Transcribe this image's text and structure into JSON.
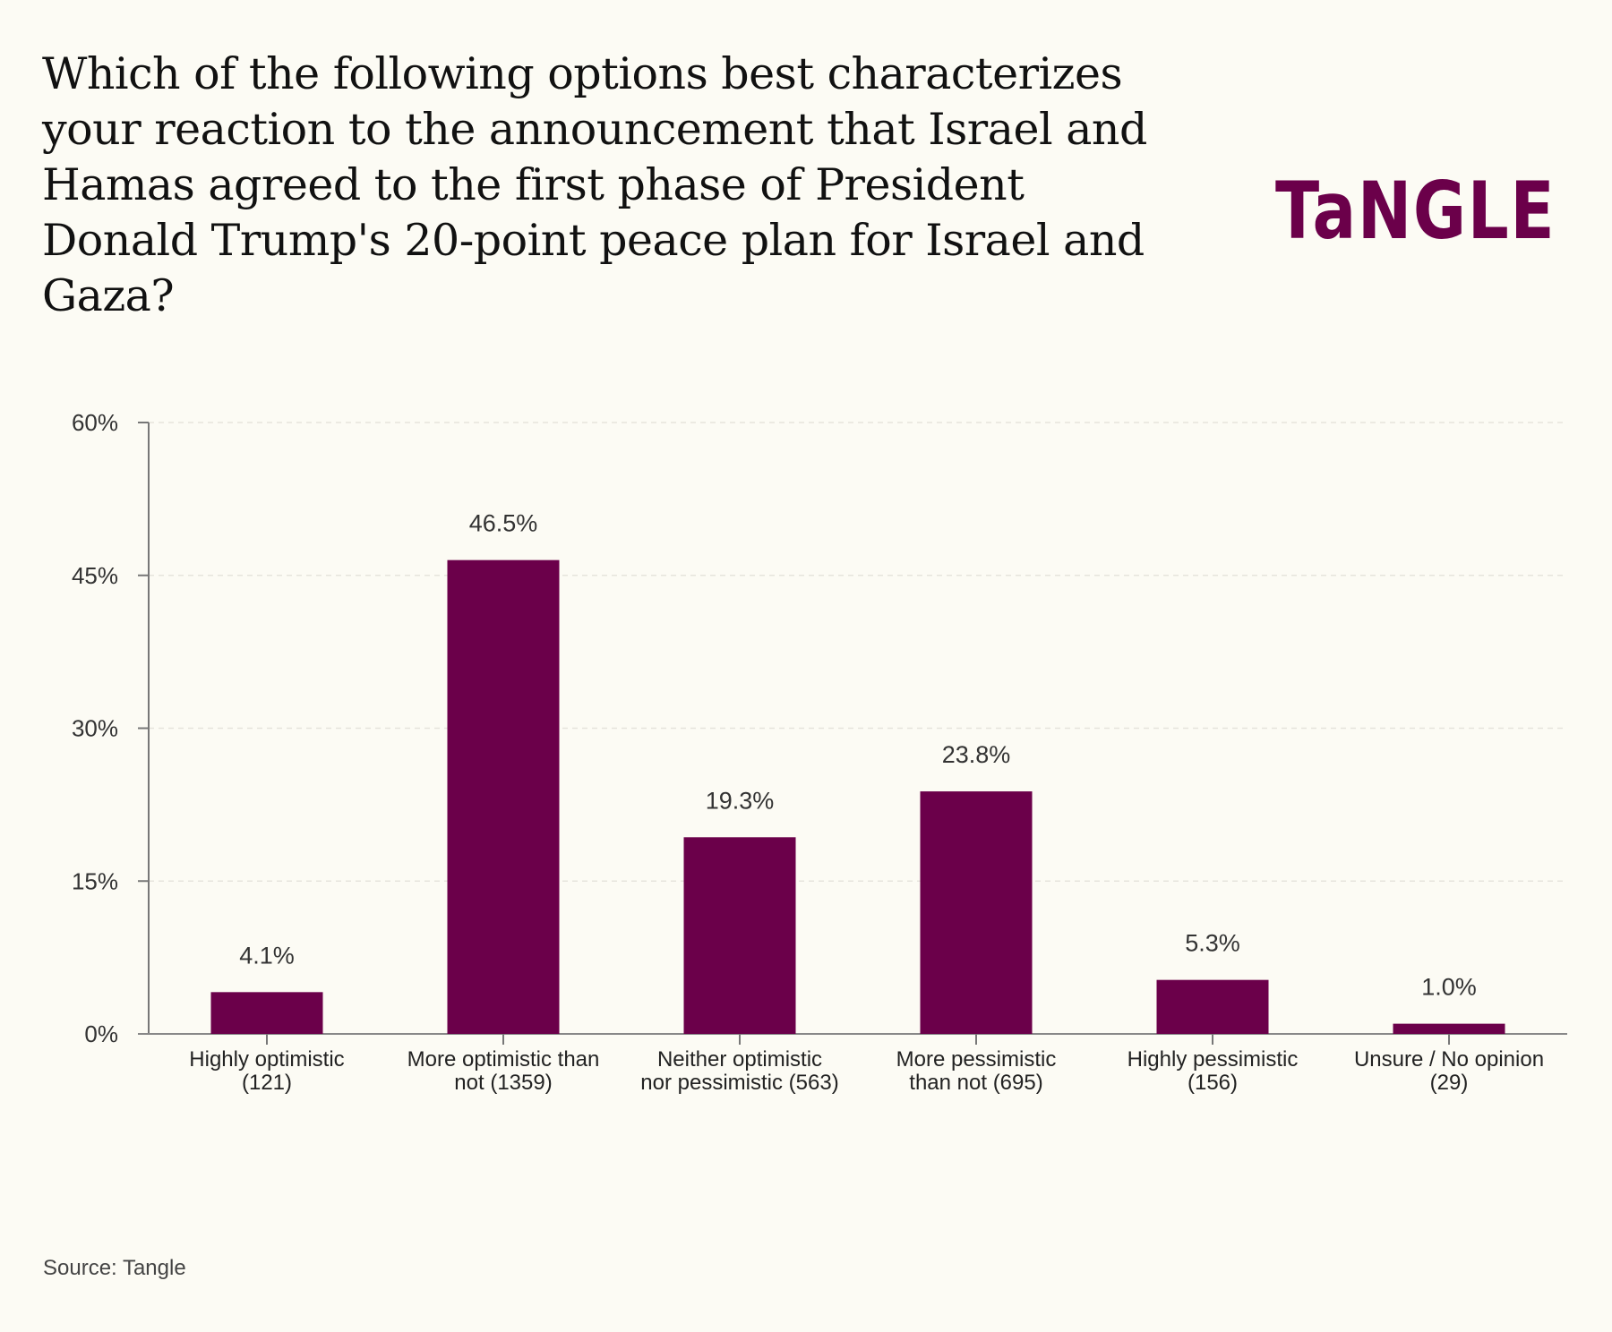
{
  "title": "Which of the following options best characterizes your reaction to the announcement that Israel and Hamas agreed to the first phase of President Donald Trump's 20-point peace plan for Israel and Gaza?",
  "logo": "TaNGLE",
  "logo_icon": "tangle-logo",
  "source": "Source: Tangle",
  "colors": {
    "bar": "#6b004a",
    "background": "#fcfbf4",
    "logo": "#6b004a"
  },
  "chart_data": {
    "type": "bar",
    "title": "Which of the following options best characterizes your reaction to the announcement that Israel and Hamas agreed to the first phase of President Donald Trump's 20-point peace plan for Israel and Gaza?",
    "xlabel": "",
    "ylabel": "",
    "ylim": [
      0,
      60
    ],
    "yticks": [
      0,
      15,
      30,
      45,
      60
    ],
    "ytick_labels": [
      "0%",
      "15%",
      "30%",
      "45%",
      "60%"
    ],
    "grid": true,
    "categories": [
      [
        "Highly optimistic",
        "(121)"
      ],
      [
        "More optimistic than",
        "not (1359)"
      ],
      [
        "Neither optimistic",
        "nor pessimistic (563)"
      ],
      [
        "More pessimistic",
        "than not (695)"
      ],
      [
        "Highly pessimistic",
        "(156)"
      ],
      [
        "Unsure / No opinion",
        "(29)"
      ]
    ],
    "counts": [
      121,
      1359,
      563,
      695,
      156,
      29
    ],
    "values": [
      4.1,
      46.5,
      19.3,
      23.8,
      5.3,
      1.0
    ],
    "value_labels": [
      "4.1%",
      "46.5%",
      "19.3%",
      "23.8%",
      "5.3%",
      "1.0%"
    ],
    "legend": "none"
  }
}
